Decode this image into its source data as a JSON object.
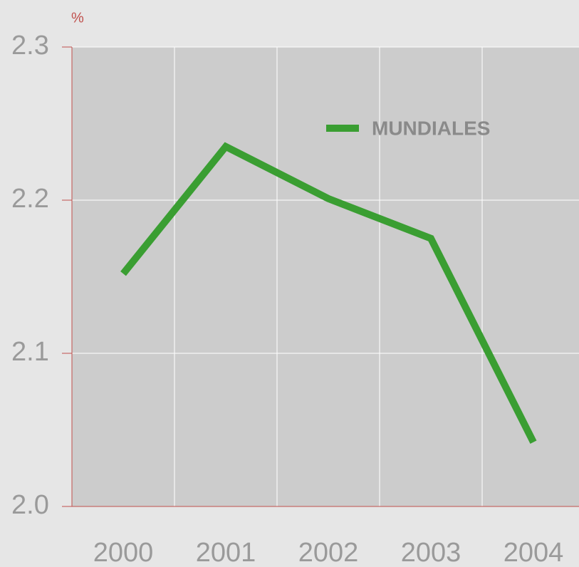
{
  "chart_data": {
    "type": "line",
    "y_unit": "%",
    "categories": [
      "2000",
      "2001",
      "2002",
      "2003",
      "2004"
    ],
    "series": [
      {
        "name": "MUNDIALES",
        "color": "#3a9e32",
        "values": [
          2.152,
          2.235,
          2.201,
          2.175,
          2.042
        ]
      }
    ],
    "ylim": [
      2.0,
      2.3
    ],
    "yticks": [
      {
        "value": 2.0,
        "label": "2.0"
      },
      2.1,
      2.2,
      2.3
    ],
    "grid": true,
    "legend": "top-right"
  }
}
